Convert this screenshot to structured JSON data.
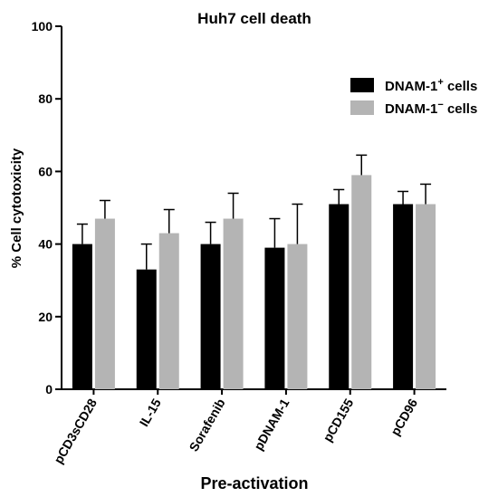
{
  "chart_data": {
    "type": "bar",
    "title": "Huh7 cell death",
    "xlabel": "Pre-activation",
    "ylabel": "% Cell cytotoxicity",
    "ylim": [
      0,
      100
    ],
    "yticks": [
      0,
      20,
      40,
      60,
      80,
      100
    ],
    "grid": false,
    "legend_position": "top-right",
    "categories": [
      "pCD3sCD28",
      "IL-15",
      "Sorafenib",
      "pDNAM-1",
      "pCD155",
      "pCD96"
    ],
    "series": [
      {
        "name": "DNAM-1⁺ cells",
        "legend_base": "DNAM-1",
        "legend_sup": "+",
        "legend_suffix": " cells",
        "color": "#000000",
        "values": [
          40,
          33,
          40,
          39,
          51,
          51
        ],
        "errors": [
          5.5,
          7,
          6,
          8,
          4,
          3.5
        ]
      },
      {
        "name": "DNAM-1⁻ cells",
        "legend_base": "DNAM-1",
        "legend_sup": "−",
        "legend_suffix": " cells",
        "color": "#b4b4b4",
        "values": [
          47,
          43,
          47,
          40,
          59,
          51
        ],
        "errors": [
          5,
          6.5,
          7,
          11,
          5.5,
          5.5
        ]
      }
    ]
  }
}
